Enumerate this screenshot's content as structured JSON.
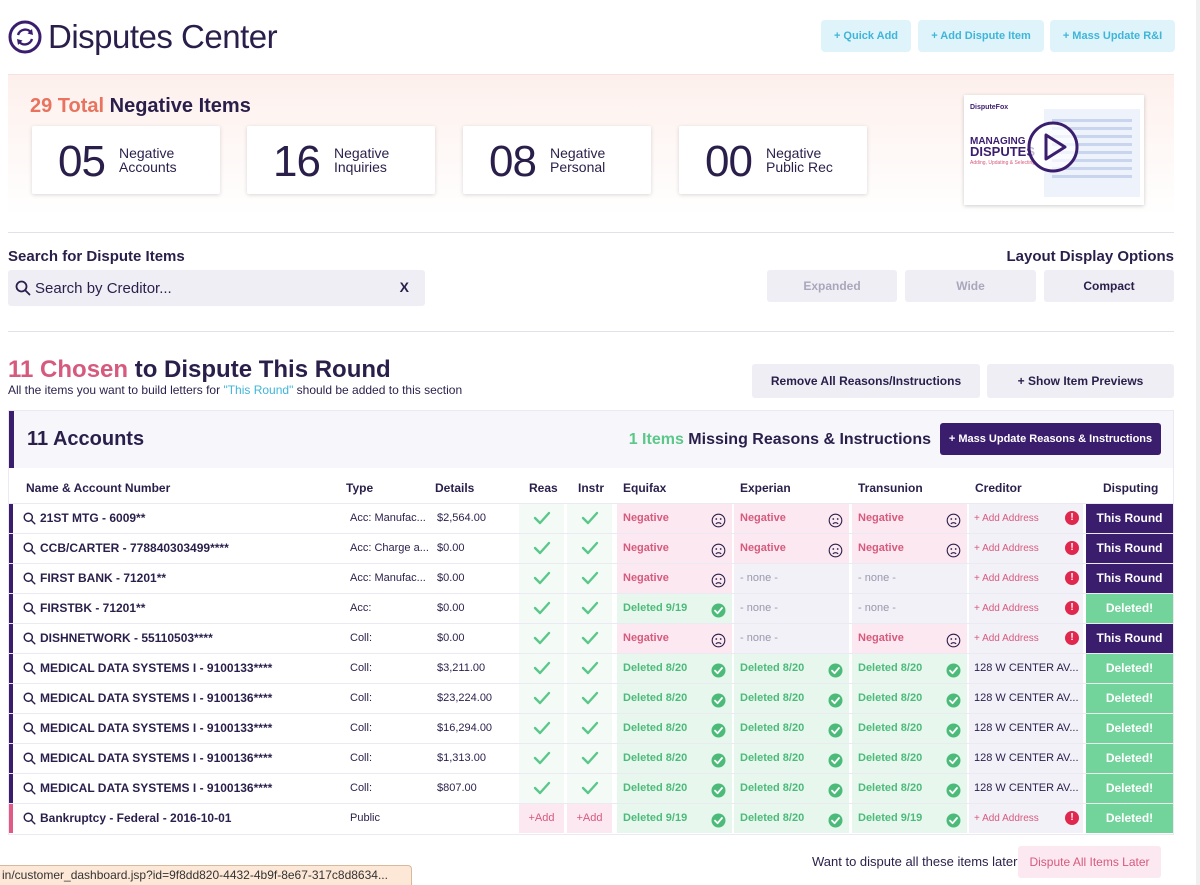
{
  "header": {
    "title": "Disputes Center",
    "buttons": [
      "+ Quick Add",
      "+ Add Dispute Item",
      "+ Mass Update R&I"
    ]
  },
  "summary": {
    "total_count": "29 Total",
    "total_suffix": " Negative Items",
    "stats": [
      {
        "num": "05",
        "line1": "Negative",
        "line2": "Accounts"
      },
      {
        "num": "16",
        "line1": "Negative",
        "line2": "Inquiries"
      },
      {
        "num": "08",
        "line1": "Negative",
        "line2": "Personal"
      },
      {
        "num": "00",
        "line1": "Negative",
        "line2": "Public Rec"
      }
    ],
    "video": {
      "brand": "DisputeFox",
      "headline1": "MANAGING",
      "headline2": "DISPUTES",
      "tagline": "Adding, Updating & Selecting"
    }
  },
  "search": {
    "label": "Search for Dispute Items",
    "placeholder": "Search by Creditor...",
    "clear": "X"
  },
  "layout_options": {
    "label": "Layout Display Options",
    "buttons": [
      "Expanded",
      "Wide",
      "Compact"
    ],
    "selected": "Compact"
  },
  "round": {
    "count": "11 Chosen",
    "title_suffix": " to Dispute This Round",
    "sub_prefix": "All the items you want to build letters for ",
    "sub_hl": "\"This Round\"",
    "sub_suffix": " should be added to this section",
    "buttons": [
      "Remove All Reasons/Instructions",
      "+ Show Item Previews"
    ]
  },
  "accounts": {
    "title": "11  Accounts",
    "missing_count": "1 Items",
    "missing_suffix": " Missing Reasons & Instructions",
    "mass_button": "+ Mass Update Reasons & Instructions",
    "columns": [
      "Name & Account Number",
      "Type",
      "Details",
      "Reas",
      "Instr",
      "Equifax",
      "Experian",
      "Transunion",
      "Creditor",
      "Disputing"
    ],
    "rows": [
      {
        "name": "21ST MTG - 6009**",
        "type": "Acc: Manufac...",
        "details": "$2,564.00",
        "reas": "check",
        "instr": "check",
        "eq": [
          "neg",
          "Negative"
        ],
        "ex": [
          "neg",
          "Negative"
        ],
        "tu": [
          "neg",
          "Negative"
        ],
        "creditor": "+ Add Address",
        "cred_alert": true,
        "disputing": [
          "round",
          "This Round"
        ],
        "bar": "purple"
      },
      {
        "name": "CCB/CARTER - 778840303499****",
        "type": "Acc: Charge a...",
        "details": "$0.00",
        "reas": "check",
        "instr": "check",
        "eq": [
          "neg",
          "Negative"
        ],
        "ex": [
          "neg",
          "Negative"
        ],
        "tu": [
          "neg",
          "Negative"
        ],
        "creditor": "+ Add Address",
        "cred_alert": true,
        "disputing": [
          "round",
          "This Round"
        ],
        "bar": "purple"
      },
      {
        "name": "FIRST BANK - 71201**",
        "type": "Acc: Manufac...",
        "details": "$0.00",
        "reas": "check",
        "instr": "check",
        "eq": [
          "neg",
          "Negative"
        ],
        "ex": [
          "none",
          "- none -"
        ],
        "tu": [
          "none",
          "- none -"
        ],
        "creditor": "+ Add Address",
        "cred_alert": true,
        "disputing": [
          "round",
          "This Round"
        ],
        "bar": "purple"
      },
      {
        "name": "FIRSTBK - 71201**",
        "type": "Acc:",
        "details": "$0.00",
        "reas": "check",
        "instr": "check",
        "eq": [
          "del",
          "Deleted 9/19"
        ],
        "ex": [
          "none",
          "- none -"
        ],
        "tu": [
          "none",
          "- none -"
        ],
        "creditor": "+ Add Address",
        "cred_alert": true,
        "disputing": [
          "del",
          "Deleted!"
        ],
        "bar": "purple"
      },
      {
        "name": "DISHNETWORK - 55110503****",
        "type": "Coll:",
        "details": "$0.00",
        "reas": "check",
        "instr": "check",
        "eq": [
          "neg",
          "Negative"
        ],
        "ex": [
          "none",
          "- none -"
        ],
        "tu": [
          "neg",
          "Negative"
        ],
        "creditor": "+ Add Address",
        "cred_alert": true,
        "disputing": [
          "round",
          "This Round"
        ],
        "bar": "purple"
      },
      {
        "name": "MEDICAL DATA SYSTEMS I - 9100133****",
        "type": "Coll:",
        "details": "$3,211.00",
        "reas": "check",
        "instr": "check",
        "eq": [
          "del",
          "Deleted 8/20"
        ],
        "ex": [
          "del",
          "Deleted 8/20"
        ],
        "tu": [
          "del",
          "Deleted 8/20"
        ],
        "creditor": "128 W CENTER AV...",
        "cred_alert": false,
        "disputing": [
          "del",
          "Deleted!"
        ],
        "bar": "purple"
      },
      {
        "name": "MEDICAL DATA SYSTEMS I - 9100136****",
        "type": "Coll:",
        "details": "$23,224.00",
        "reas": "check",
        "instr": "check",
        "eq": [
          "del",
          "Deleted 8/20"
        ],
        "ex": [
          "del",
          "Deleted 8/20"
        ],
        "tu": [
          "del",
          "Deleted 8/20"
        ],
        "creditor": "128 W CENTER AV...",
        "cred_alert": false,
        "disputing": [
          "del",
          "Deleted!"
        ],
        "bar": "purple"
      },
      {
        "name": "MEDICAL DATA SYSTEMS I - 9100133****",
        "type": "Coll:",
        "details": "$16,294.00",
        "reas": "check",
        "instr": "check",
        "eq": [
          "del",
          "Deleted 8/20"
        ],
        "ex": [
          "del",
          "Deleted 8/20"
        ],
        "tu": [
          "del",
          "Deleted 8/20"
        ],
        "creditor": "128 W CENTER AV...",
        "cred_alert": false,
        "disputing": [
          "del",
          "Deleted!"
        ],
        "bar": "purple"
      },
      {
        "name": "MEDICAL DATA SYSTEMS I - 9100136****",
        "type": "Coll:",
        "details": "$1,313.00",
        "reas": "check",
        "instr": "check",
        "eq": [
          "del",
          "Deleted 8/20"
        ],
        "ex": [
          "del",
          "Deleted 8/20"
        ],
        "tu": [
          "del",
          "Deleted 8/20"
        ],
        "creditor": "128 W CENTER AV...",
        "cred_alert": false,
        "disputing": [
          "del",
          "Deleted!"
        ],
        "bar": "purple"
      },
      {
        "name": "MEDICAL DATA SYSTEMS I - 9100136****",
        "type": "Coll:",
        "details": "$807.00",
        "reas": "check",
        "instr": "check",
        "eq": [
          "del",
          "Deleted 8/20"
        ],
        "ex": [
          "del",
          "Deleted 8/20"
        ],
        "tu": [
          "del",
          "Deleted 8/20"
        ],
        "creditor": "128 W CENTER AV...",
        "cred_alert": false,
        "disputing": [
          "del",
          "Deleted!"
        ],
        "bar": "purple"
      },
      {
        "name": "Bankruptcy - Federal - 2016-10-01",
        "type": "Public",
        "details": "",
        "reas": "+Add",
        "instr": "+Add",
        "eq": [
          "del",
          "Deleted 9/19"
        ],
        "ex": [
          "del",
          "Deleted 8/20"
        ],
        "tu": [
          "del",
          "Deleted 9/19"
        ],
        "creditor": "+ Add Address",
        "cred_alert": true,
        "disputing": [
          "del",
          "Deleted!"
        ],
        "bar": "pink"
      }
    ]
  },
  "footer": {
    "later_text": "Want to dispute all these items later?",
    "later_button": "Dispute All Items Later"
  },
  "statusbar": {
    "url": "in/customer_dashboard.jsp?id=9f8dd820-4432-4b9f-8e67-317c8d8634..."
  },
  "colors": {
    "brand_purple": "#3b1d6e",
    "accent_cyan": "#3fb5d9",
    "accent_coral": "#e8735e",
    "accent_pink": "#d65a7e",
    "success_green": "#4cbb7a"
  }
}
